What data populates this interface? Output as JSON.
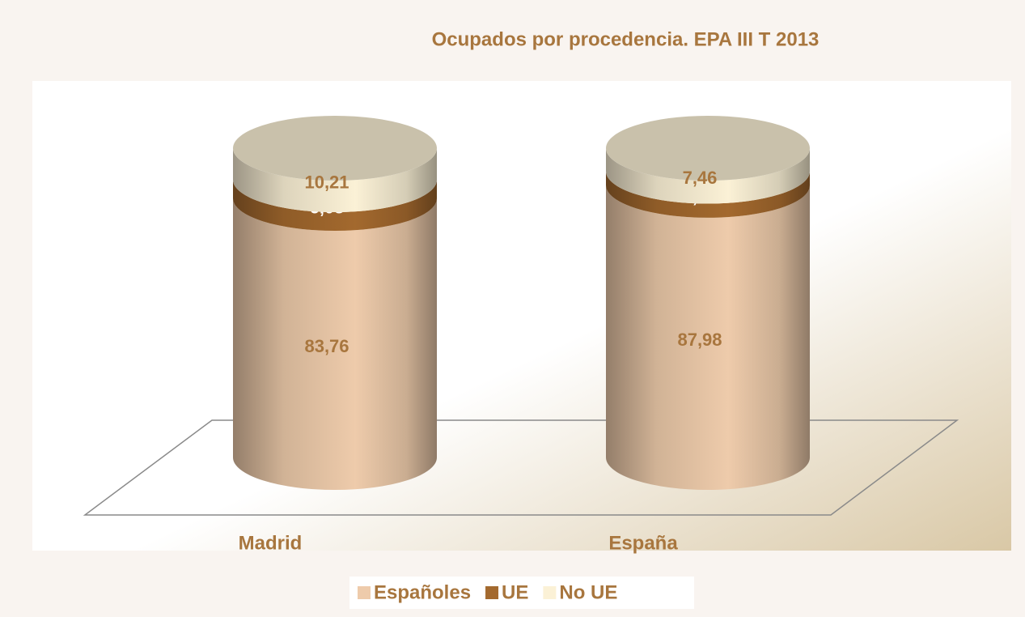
{
  "chart_data": {
    "type": "cylinder-stacked",
    "title": "Ocupados por procedencia. EPA III T 2013",
    "categories": [
      "Madrid",
      "España"
    ],
    "series": [
      {
        "name": "Españoles",
        "color": "#eecbab",
        "values": [
          83.76,
          87.98
        ],
        "value_labels": [
          "83,76",
          "87,98"
        ]
      },
      {
        "name": "UE",
        "color": "#a3692e",
        "values": [
          6.03,
          4.56
        ],
        "value_labels": [
          "6,03",
          "4,56"
        ]
      },
      {
        "name": "No UE",
        "color": "#fbf1d6",
        "values": [
          10.21,
          7.46
        ],
        "value_labels": [
          "10,21",
          "7,46"
        ]
      }
    ],
    "legend": "bottom"
  }
}
